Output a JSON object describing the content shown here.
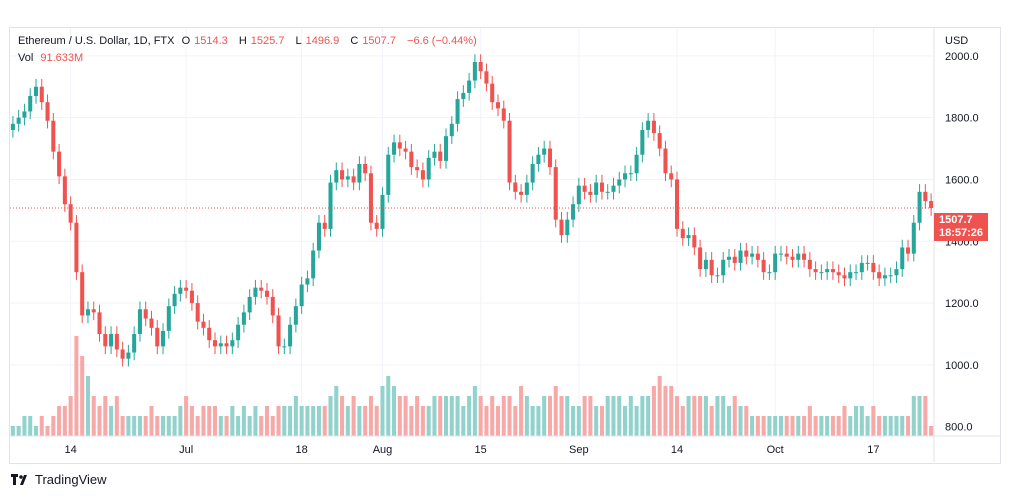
{
  "header": {
    "symbol": "Ethereum / U.S. Dollar, 1D, FTX",
    "open_label": "O",
    "open": "1514.3",
    "high_label": "H",
    "high": "1525.7",
    "low_label": "L",
    "low": "1496.9",
    "close_label": "C",
    "close": "1507.7",
    "change": "−6.6 (−0.44%)",
    "vol_label": "Vol",
    "vol": "91.633M"
  },
  "price_tag": {
    "price": "1507.7",
    "countdown": "18:57:26"
  },
  "brand": "TradingView",
  "colors": {
    "up": "#26a69a",
    "down": "#ef5350",
    "up_vol": "#92d2cc",
    "down_vol": "#f7a9a7",
    "grid": "#f0f3fa"
  },
  "chart_data": {
    "type": "candlestick",
    "currency": "USD",
    "y_ticks": [
      "800.0",
      "1000.0",
      "1200.0",
      "1400.0",
      "1600.0",
      "1800.0",
      "2000.0"
    ],
    "ylim": [
      770,
      2090
    ],
    "x_ticks": [
      "14",
      "Jul",
      "18",
      "Aug",
      "15",
      "Sep",
      "14",
      "Oct",
      "17"
    ],
    "last_price": 1507.7,
    "ohlc_close": [
      1780,
      1800,
      1820,
      1870,
      1900,
      1850,
      1790,
      1690,
      1610,
      1520,
      1460,
      1300,
      1160,
      1180,
      1170,
      1100,
      1060,
      1100,
      1050,
      1020,
      1040,
      1100,
      1180,
      1150,
      1120,
      1060,
      1110,
      1190,
      1230,
      1250,
      1240,
      1200,
      1140,
      1120,
      1080,
      1060,
      1070,
      1060,
      1080,
      1130,
      1170,
      1220,
      1250,
      1240,
      1220,
      1160,
      1060,
      1060,
      1130,
      1190,
      1260,
      1280,
      1370,
      1460,
      1440,
      1590,
      1630,
      1600,
      1610,
      1590,
      1650,
      1620,
      1460,
      1440,
      1550,
      1680,
      1720,
      1700,
      1690,
      1640,
      1630,
      1600,
      1670,
      1690,
      1660,
      1740,
      1780,
      1860,
      1880,
      1920,
      1980,
      1950,
      1910,
      1850,
      1830,
      1790,
      1590,
      1560,
      1550,
      1590,
      1650,
      1680,
      1700,
      1640,
      1470,
      1420,
      1470,
      1520,
      1580,
      1560,
      1550,
      1590,
      1560,
      1560,
      1580,
      1600,
      1620,
      1620,
      1680,
      1760,
      1790,
      1750,
      1700,
      1620,
      1600,
      1440,
      1410,
      1420,
      1380,
      1310,
      1340,
      1290,
      1290,
      1340,
      1350,
      1330,
      1370,
      1350,
      1360,
      1340,
      1300,
      1300,
      1360,
      1360,
      1350,
      1340,
      1360,
      1340,
      1310,
      1300,
      1300,
      1310,
      1300,
      1290,
      1280,
      1300,
      1300,
      1330,
      1330,
      1300,
      1280,
      1290,
      1290,
      1310,
      1380,
      1360,
      1460,
      1560,
      1530,
      1507.7
    ],
    "volume": [
      1,
      1,
      2,
      2,
      1,
      2,
      1,
      2,
      3,
      3,
      4,
      10,
      8,
      6,
      4,
      3,
      4,
      3,
      4,
      2,
      2,
      2,
      2,
      2,
      3,
      2,
      2,
      2,
      2,
      3,
      4,
      3,
      2,
      3,
      3,
      3,
      2,
      2,
      3,
      2,
      3,
      2,
      3,
      2,
      3,
      2,
      3,
      3,
      3,
      4,
      3,
      3,
      3,
      3,
      3,
      4,
      5,
      4,
      3,
      4,
      3,
      3,
      4,
      3,
      5,
      6,
      5,
      4,
      4,
      3,
      4,
      3,
      3,
      4,
      4,
      4,
      4,
      4,
      3,
      4,
      5,
      4,
      3,
      4,
      3,
      4,
      4,
      3,
      5,
      4,
      3,
      3,
      4,
      4,
      5,
      4,
      4,
      3,
      3,
      4,
      4,
      3,
      3,
      4,
      4,
      4,
      3,
      4,
      3,
      4,
      4,
      5,
      6,
      5,
      5,
      4,
      3,
      4,
      4,
      4,
      4,
      3,
      4,
      4,
      3,
      4,
      3,
      3,
      2,
      2,
      2,
      2,
      2,
      2,
      2,
      2,
      2,
      2,
      3,
      2,
      2,
      2,
      2,
      2,
      3,
      2,
      3,
      3,
      2,
      3,
      2,
      2,
      2,
      2,
      2,
      2,
      4,
      4,
      4,
      1
    ]
  }
}
